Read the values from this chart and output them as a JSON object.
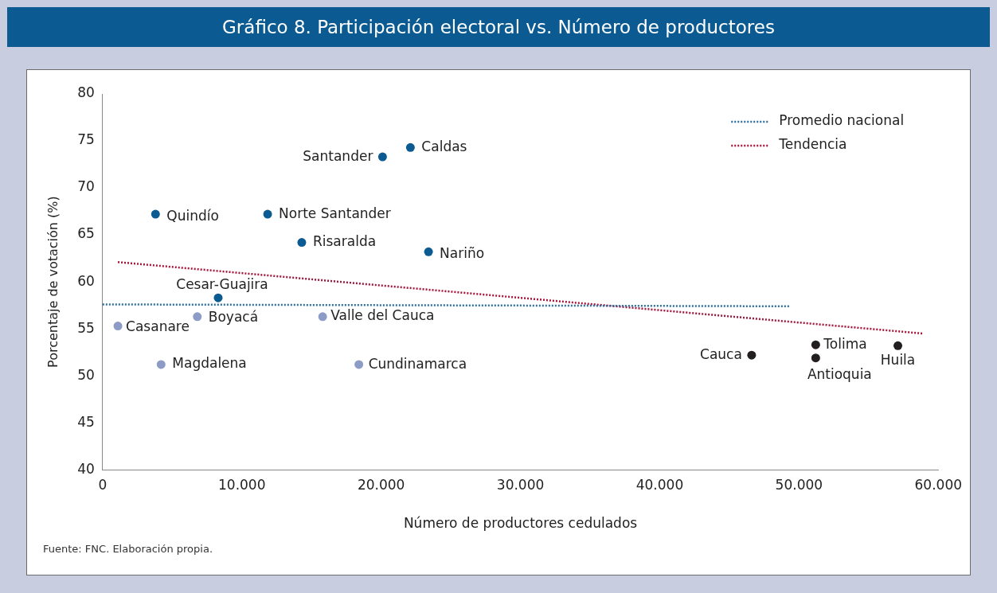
{
  "chart_data": {
    "type": "scatter",
    "title": "Gráfico 8. Participación electoral vs. Número de productores",
    "xlabel": "Número de productores cedulados",
    "ylabel": "Porcentaje de votación (%)",
    "xlim": [
      0,
      60000
    ],
    "xticks": [
      {
        "value": 0,
        "label": "0"
      },
      {
        "value": 10000,
        "label": "10.000"
      },
      {
        "value": 20000,
        "label": "20.000"
      },
      {
        "value": 30000,
        "label": "30.000"
      },
      {
        "value": 40000,
        "label": "40.000"
      },
      {
        "value": 50000,
        "label": "50.000"
      },
      {
        "value": 60000,
        "label": "60.000"
      }
    ],
    "ylim": [
      40,
      80
    ],
    "yticks": [
      40,
      45,
      50,
      55,
      60,
      65,
      70,
      75,
      80
    ],
    "grid": false,
    "legend": "top right",
    "marker": "circle",
    "series": [
      {
        "color": "#0b5a91",
        "x": [
          20100,
          22100,
          3800,
          11850,
          14300,
          23400,
          8300
        ],
        "values": [
          73.3,
          74.3,
          67.2,
          67.2,
          64.2,
          63.2,
          58.3
        ]
      },
      {
        "color": "#8d9cc6",
        "x": [
          6800,
          1100,
          15800,
          4200,
          18400
        ],
        "values": [
          56.3,
          55.3,
          56.3,
          51.2,
          51.2
        ]
      },
      {
        "color": "#231f20",
        "x": [
          46600,
          51200,
          51200,
          57100
        ],
        "values": [
          52.2,
          53.3,
          51.9,
          53.2
        ]
      },
      {
        "type": "line",
        "name": "Promedio nacional",
        "color": "#2e6f9e",
        "line_style": "dotted",
        "marker": "none",
        "x": [
          0,
          49400
        ],
        "values": [
          57.6,
          57.4
        ]
      },
      {
        "type": "line",
        "name": "Tendencia",
        "color": "#a3153a",
        "line_style": "dotted",
        "marker": "none",
        "x": [
          1100,
          58900
        ],
        "values": [
          62.1,
          54.5
        ]
      }
    ],
    "annotations": [
      {
        "text": "Santander",
        "x": 20100,
        "y": 73.3
      },
      {
        "text": "Caldas",
        "x": 22100,
        "y": 74.3
      },
      {
        "text": "Quindío",
        "x": 3800,
        "y": 67.2
      },
      {
        "text": "Norte Santander",
        "x": 11850,
        "y": 67.2
      },
      {
        "text": "Risaralda",
        "x": 14300,
        "y": 64.2
      },
      {
        "text": "Nariño",
        "x": 23400,
        "y": 63.2
      },
      {
        "text": "Cesar-Guajira",
        "x": 8300,
        "y": 58.3
      },
      {
        "text": "Boyacá",
        "x": 6800,
        "y": 56.3
      },
      {
        "text": "Casanare",
        "x": 1100,
        "y": 55.3
      },
      {
        "text": "Valle del Cauca",
        "x": 15800,
        "y": 56.3
      },
      {
        "text": "Magdalena",
        "x": 4200,
        "y": 51.2
      },
      {
        "text": "Cundinamarca",
        "x": 18400,
        "y": 51.2
      },
      {
        "text": "Cauca",
        "x": 46600,
        "y": 52.2
      },
      {
        "text": "Tolima",
        "x": 51200,
        "y": 53.3
      },
      {
        "text": "Antioquia",
        "x": 51200,
        "y": 51.9
      },
      {
        "text": "Huila",
        "x": 57100,
        "y": 53.2
      },
      "Fuente: FNC. Elaboración propia."
    ]
  }
}
